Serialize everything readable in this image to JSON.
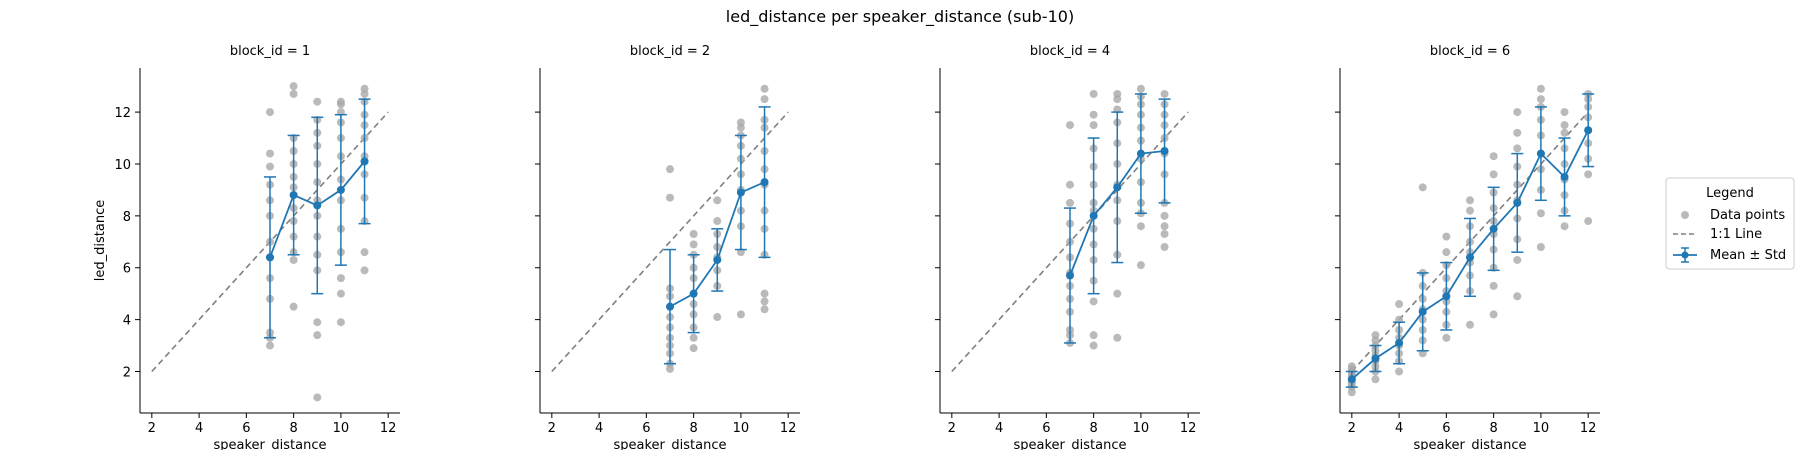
{
  "figure": {
    "title": "led_distance per speaker_distance (sub-10)"
  },
  "legend": {
    "title": "Legend",
    "entries": [
      "Data points",
      "1:1 Line",
      "Mean ± Std"
    ]
  },
  "colors": {
    "points": "#a9a9a9",
    "mean": "#1f77b4",
    "identity": "#7f7f7f"
  },
  "chart_data": [
    {
      "type": "scatter",
      "title": "block_id = 1",
      "xlabel": "speaker_distance",
      "ylabel": "led_distance",
      "xlim": [
        1.5,
        12.5
      ],
      "ylim": [
        0.4,
        13.7
      ],
      "xticks": [
        2,
        4,
        6,
        8,
        10,
        12
      ],
      "yticks": [
        2,
        4,
        6,
        8,
        10,
        12
      ],
      "identity_line": [
        2,
        12
      ],
      "mean_std": [
        {
          "x": 7,
          "mean": 6.4,
          "std": 3.1
        },
        {
          "x": 8,
          "mean": 8.8,
          "std": 2.3
        },
        {
          "x": 9,
          "mean": 8.4,
          "std": 3.4
        },
        {
          "x": 10,
          "mean": 9.0,
          "std": 2.9
        },
        {
          "x": 11,
          "mean": 10.1,
          "std": 2.4
        }
      ],
      "points": {
        "7": [
          3.0,
          3.3,
          3.5,
          4.8,
          5.6,
          6.4,
          7.0,
          8.0,
          8.6,
          9.2,
          9.9,
          10.4,
          12.0
        ],
        "8": [
          4.5,
          6.3,
          6.6,
          7.2,
          7.8,
          8.3,
          8.8,
          9.1,
          9.5,
          10.0,
          10.5,
          11.0,
          12.7,
          13.0
        ],
        "9": [
          1.0,
          3.4,
          3.9,
          5.9,
          6.5,
          7.2,
          8.0,
          8.6,
          9.3,
          10.0,
          10.7,
          11.2,
          11.7,
          12.4
        ],
        "10": [
          3.9,
          5.0,
          5.6,
          6.6,
          7.5,
          8.6,
          9.4,
          10.3,
          11.0,
          11.6,
          12.0,
          12.3,
          12.4
        ],
        "11": [
          5.9,
          6.6,
          7.8,
          8.7,
          9.6,
          10.3,
          11.0,
          11.5,
          11.9,
          12.4,
          12.7,
          12.9
        ]
      }
    },
    {
      "type": "scatter",
      "title": "block_id = 2",
      "xlabel": "speaker_distance",
      "ylabel": "",
      "xlim": [
        1.5,
        12.5
      ],
      "ylim": [
        0.4,
        13.7
      ],
      "xticks": [
        2,
        4,
        6,
        8,
        10,
        12
      ],
      "yticks": [
        2,
        4,
        6,
        8,
        10,
        12
      ],
      "identity_line": [
        2,
        12
      ],
      "mean_std": [
        {
          "x": 7,
          "mean": 4.5,
          "std": 2.2
        },
        {
          "x": 8,
          "mean": 5.0,
          "std": 1.5
        },
        {
          "x": 9,
          "mean": 6.3,
          "std": 1.2
        },
        {
          "x": 10,
          "mean": 8.9,
          "std": 2.2
        },
        {
          "x": 11,
          "mean": 9.3,
          "std": 2.9
        }
      ],
      "points": {
        "7": [
          2.1,
          2.3,
          2.7,
          3.0,
          3.3,
          3.7,
          4.1,
          4.5,
          4.9,
          5.2,
          8.7,
          9.8
        ],
        "8": [
          2.9,
          3.3,
          3.7,
          4.2,
          4.6,
          5.0,
          5.6,
          6.0,
          6.5,
          6.9,
          7.3
        ],
        "9": [
          4.1,
          5.3,
          5.9,
          6.4,
          6.8,
          7.3,
          7.8,
          8.6
        ],
        "10": [
          4.2,
          6.6,
          7.6,
          8.2,
          9.0,
          9.6,
          10.2,
          10.7,
          11.1,
          11.4,
          11.6
        ],
        "11": [
          4.4,
          4.7,
          5.0,
          6.5,
          7.5,
          8.2,
          9.2,
          9.8,
          10.5,
          11.4,
          11.7,
          12.5,
          12.9
        ]
      }
    },
    {
      "type": "scatter",
      "title": "block_id = 4",
      "xlabel": "speaker_distance",
      "ylabel": "",
      "xlim": [
        1.5,
        12.5
      ],
      "ylim": [
        0.4,
        13.7
      ],
      "xticks": [
        2,
        4,
        6,
        8,
        10,
        12
      ],
      "yticks": [
        2,
        4,
        6,
        8,
        10,
        12
      ],
      "identity_line": [
        2,
        12
      ],
      "mean_std": [
        {
          "x": 7,
          "mean": 5.7,
          "std": 2.6
        },
        {
          "x": 8,
          "mean": 8.0,
          "std": 3.0
        },
        {
          "x": 9,
          "mean": 9.1,
          "std": 2.9
        },
        {
          "x": 10,
          "mean": 10.4,
          "std": 2.3
        },
        {
          "x": 11,
          "mean": 10.5,
          "std": 2.0
        }
      ],
      "points": {
        "7": [
          3.1,
          3.4,
          3.6,
          4.3,
          4.8,
          5.3,
          5.8,
          6.4,
          7.0,
          7.7,
          8.5,
          9.2,
          11.5
        ],
        "8": [
          3.0,
          3.4,
          4.7,
          5.5,
          6.3,
          6.9,
          7.5,
          8.2,
          8.5,
          9.2,
          9.9,
          10.6,
          11.5,
          11.9,
          12.7
        ],
        "9": [
          3.3,
          5.0,
          6.5,
          7.8,
          8.6,
          9.2,
          10.0,
          10.8,
          11.6,
          12.1,
          12.5,
          12.7
        ],
        "10": [
          6.1,
          7.6,
          8.1,
          8.5,
          9.3,
          10.2,
          10.9,
          11.4,
          11.9,
          12.3,
          12.6,
          12.9
        ],
        "11": [
          6.8,
          7.3,
          7.6,
          8.0,
          8.5,
          9.6,
          10.4,
          11.0,
          11.5,
          11.9,
          12.3,
          12.7
        ]
      }
    },
    {
      "type": "scatter",
      "title": "block_id = 6",
      "xlabel": "speaker_distance",
      "ylabel": "",
      "xlim": [
        1.5,
        12.5
      ],
      "ylim": [
        0.4,
        13.7
      ],
      "xticks": [
        2,
        4,
        6,
        8,
        10,
        12
      ],
      "yticks": [
        2,
        4,
        6,
        8,
        10,
        12
      ],
      "identity_line": [
        2,
        12
      ],
      "mean_std": [
        {
          "x": 2,
          "mean": 1.7,
          "std": 0.3
        },
        {
          "x": 3,
          "mean": 2.5,
          "std": 0.5
        },
        {
          "x": 4,
          "mean": 3.1,
          "std": 0.8
        },
        {
          "x": 5,
          "mean": 4.3,
          "std": 1.5
        },
        {
          "x": 6,
          "mean": 4.9,
          "std": 1.3
        },
        {
          "x": 7,
          "mean": 6.4,
          "std": 1.5
        },
        {
          "x": 8,
          "mean": 7.5,
          "std": 1.6
        },
        {
          "x": 9,
          "mean": 8.5,
          "std": 1.9
        },
        {
          "x": 10,
          "mean": 10.4,
          "std": 1.8
        },
        {
          "x": 11,
          "mean": 9.5,
          "std": 1.5
        },
        {
          "x": 12,
          "mean": 11.3,
          "std": 1.4
        }
      ],
      "points": {
        "2": [
          1.2,
          1.4,
          1.5,
          1.6,
          1.7,
          1.8,
          1.9,
          2.0,
          2.1,
          2.2
        ],
        "3": [
          1.7,
          2.0,
          2.2,
          2.4,
          2.6,
          2.8,
          3.0,
          3.2,
          3.4
        ],
        "4": [
          2.0,
          2.4,
          2.7,
          3.0,
          3.3,
          3.6,
          4.0,
          4.6
        ],
        "5": [
          2.7,
          3.2,
          3.6,
          4.0,
          4.4,
          4.8,
          5.3,
          5.8,
          9.1
        ],
        "6": [
          3.3,
          3.8,
          4.3,
          4.7,
          5.1,
          5.6,
          6.1,
          6.6,
          7.2
        ],
        "7": [
          3.8,
          5.1,
          5.7,
          6.2,
          6.6,
          7.0,
          7.6,
          8.2,
          8.6
        ],
        "8": [
          4.2,
          5.3,
          6.0,
          6.7,
          7.3,
          7.8,
          8.3,
          8.9,
          9.6,
          10.3
        ],
        "9": [
          4.9,
          6.3,
          7.1,
          7.9,
          8.6,
          9.2,
          9.9,
          10.6,
          11.2,
          12.0
        ],
        "10": [
          6.8,
          8.1,
          9.0,
          9.8,
          10.4,
          11.1,
          11.7,
          12.2,
          12.5,
          12.9
        ],
        "11": [
          7.6,
          8.2,
          8.8,
          9.4,
          10.0,
          10.6,
          11.2,
          11.5,
          12.0
        ],
        "12": [
          7.8,
          9.6,
          10.2,
          10.8,
          11.3,
          11.8,
          12.2,
          12.5,
          12.7
        ]
      }
    }
  ]
}
